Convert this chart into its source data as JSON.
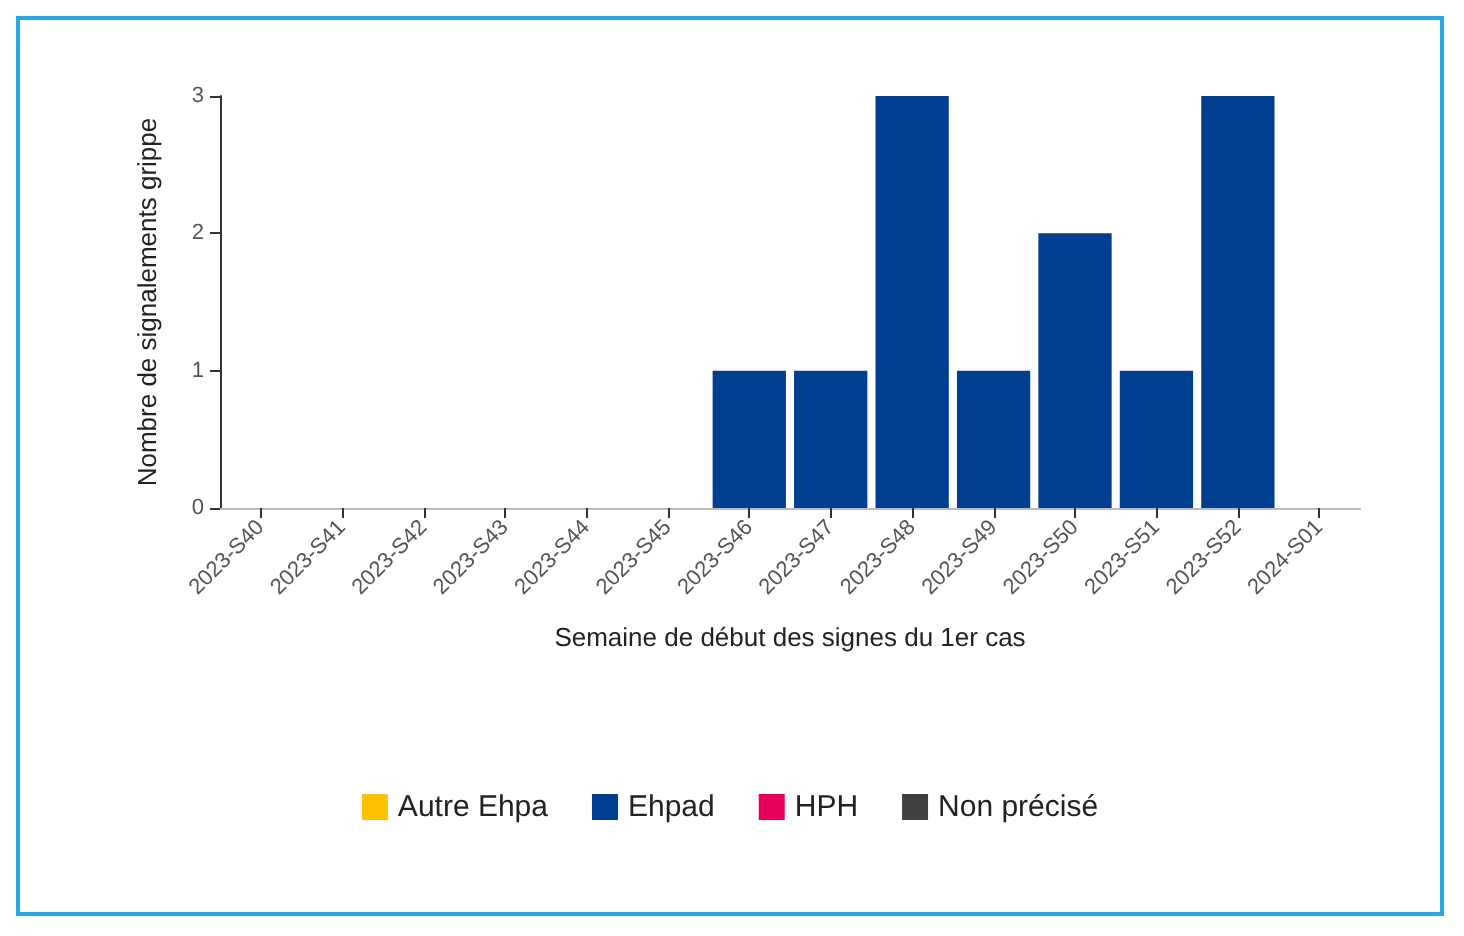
{
  "chart_data": {
    "type": "bar",
    "stacked": true,
    "xlabel": "Semaine de début des signes du 1er cas",
    "ylabel": "Nombre de signalements grippe",
    "categories": [
      "2023-S40",
      "2023-S41",
      "2023-S42",
      "2023-S43",
      "2023-S44",
      "2023-S45",
      "2023-S46",
      "2023-S47",
      "2023-S48",
      "2023-S49",
      "2023-S50",
      "2023-S51",
      "2023-S52",
      "2024-S01"
    ],
    "series": [
      {
        "name": "Autre Ehpa",
        "color": "#ffc000",
        "values": [
          0,
          0,
          0,
          0,
          0,
          0,
          0,
          0,
          0,
          0,
          0,
          0,
          0,
          0
        ]
      },
      {
        "name": "Ehpad",
        "color": "#003f8f",
        "values": [
          0,
          0,
          0,
          0,
          0,
          0,
          1,
          1,
          3,
          1,
          2,
          1,
          3,
          0
        ]
      },
      {
        "name": "HPH",
        "color": "#e6005c",
        "values": [
          0,
          0,
          0,
          0,
          0,
          0,
          0,
          0,
          0,
          0,
          0,
          0,
          0,
          0
        ]
      },
      {
        "name": "Non précisé",
        "color": "#404040",
        "values": [
          0,
          0,
          0,
          0,
          0,
          0,
          0,
          0,
          0,
          0,
          0,
          0,
          0,
          0
        ]
      }
    ],
    "ylim": [
      0,
      3
    ],
    "yticks": [
      0,
      1,
      2,
      3
    ],
    "grid": false,
    "legend": "bottom"
  }
}
